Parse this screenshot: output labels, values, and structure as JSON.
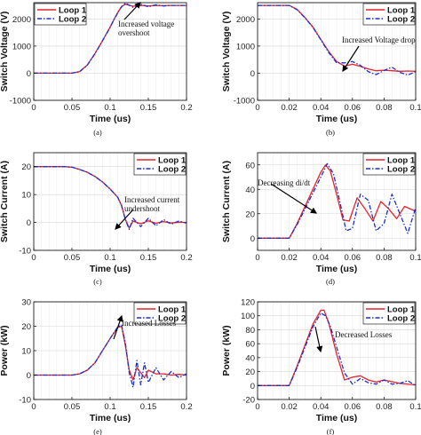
{
  "chart_data": [
    {
      "type": "line",
      "panel_label": "(a)",
      "xlabel": "Time (us)",
      "ylabel": "Switch Voltage (V)",
      "xlim": [
        0,
        0.2
      ],
      "ylim": [
        -1000,
        2600
      ],
      "xticks": [
        "0",
        "0.05",
        "0.1",
        "0.15",
        "0.2"
      ],
      "yticks": [
        "-1000",
        "0",
        "1000",
        "2000"
      ],
      "grid": true,
      "legend": "top-left",
      "annotation": [
        "Increased voltage",
        "overshoot"
      ],
      "series": [
        {
          "name": "Loop 1",
          "color": "#e8222a",
          "style": "solid",
          "x": [
            0,
            0.05,
            0.06,
            0.07,
            0.08,
            0.09,
            0.1,
            0.105,
            0.11,
            0.115,
            0.12,
            0.13,
            0.14,
            0.15,
            0.16,
            0.17,
            0.18,
            0.19,
            0.2
          ],
          "y": [
            0,
            0,
            60,
            300,
            720,
            1200,
            1700,
            1980,
            2240,
            2460,
            2540,
            2470,
            2500,
            2480,
            2500,
            2490,
            2500,
            2500,
            2500
          ]
        },
        {
          "name": "Loop 2",
          "color": "#1a2fd0",
          "style": "dashdot",
          "x": [
            0,
            0.05,
            0.06,
            0.07,
            0.08,
            0.09,
            0.1,
            0.105,
            0.11,
            0.115,
            0.12,
            0.13,
            0.14,
            0.15,
            0.16,
            0.17,
            0.18,
            0.19,
            0.2
          ],
          "y": [
            0,
            0,
            55,
            290,
            710,
            1190,
            1690,
            1970,
            2230,
            2450,
            2580,
            2430,
            2540,
            2450,
            2520,
            2480,
            2500,
            2500,
            2500
          ]
        }
      ]
    },
    {
      "type": "line",
      "panel_label": "(b)",
      "xlabel": "Time (us)",
      "ylabel": "Switch Voltage (V)",
      "xlim": [
        0,
        0.1
      ],
      "ylim": [
        -1000,
        2600
      ],
      "xticks": [
        "0",
        "0.02",
        "0.04",
        "0.06",
        "0.08",
        "0.1"
      ],
      "yticks": [
        "-1000",
        "0",
        "1000",
        "2000"
      ],
      "grid": true,
      "legend": "top-right",
      "annotation": [
        "Increased Voltage drop"
      ],
      "series": [
        {
          "name": "Loop 1",
          "color": "#e8222a",
          "style": "solid",
          "x": [
            0,
            0.02,
            0.025,
            0.03,
            0.035,
            0.04,
            0.045,
            0.05,
            0.055,
            0.06,
            0.065,
            0.07,
            0.075,
            0.08,
            0.085,
            0.09,
            0.095,
            0.1
          ],
          "y": [
            2500,
            2500,
            2350,
            2050,
            1700,
            1250,
            800,
            430,
            260,
            330,
            250,
            160,
            90,
            110,
            90,
            70,
            80,
            70
          ]
        },
        {
          "name": "Loop 2",
          "color": "#1a2fd0",
          "style": "dashdot",
          "x": [
            0,
            0.02,
            0.025,
            0.03,
            0.035,
            0.04,
            0.045,
            0.05,
            0.055,
            0.06,
            0.065,
            0.07,
            0.075,
            0.08,
            0.085,
            0.09,
            0.095,
            0.1
          ],
          "y": [
            2500,
            2500,
            2340,
            2040,
            1690,
            1230,
            760,
            380,
            380,
            430,
            290,
            60,
            -50,
            100,
            220,
            30,
            -70,
            60
          ]
        }
      ]
    },
    {
      "type": "line",
      "panel_label": "(c)",
      "xlabel": "Time (us)",
      "ylabel": "Switch Current (A)",
      "xlim": [
        0,
        0.2
      ],
      "ylim": [
        -10,
        25
      ],
      "xticks": [
        "0",
        "0.05",
        "0.1",
        "0.15",
        "0.2"
      ],
      "yticks": [
        "-10",
        "0",
        "10",
        "20"
      ],
      "grid": true,
      "legend": "top-right",
      "annotation": [
        "Increased current",
        "undershoot"
      ],
      "series": [
        {
          "name": "Loop 1",
          "color": "#e8222a",
          "style": "solid",
          "x": [
            0,
            0.02,
            0.04,
            0.05,
            0.06,
            0.07,
            0.08,
            0.09,
            0.1,
            0.11,
            0.115,
            0.12,
            0.125,
            0.13,
            0.14,
            0.15,
            0.16,
            0.17,
            0.18,
            0.19,
            0.2
          ],
          "y": [
            20,
            20,
            20,
            19.8,
            19,
            18,
            16.5,
            14.5,
            12,
            9,
            6,
            1,
            -2,
            0.5,
            -0.5,
            0.6,
            -0.3,
            0.3,
            -0.2,
            0.1,
            0
          ]
        },
        {
          "name": "Loop 2",
          "color": "#1a2fd0",
          "style": "dashdot",
          "x": [
            0,
            0.02,
            0.04,
            0.05,
            0.06,
            0.07,
            0.08,
            0.09,
            0.1,
            0.11,
            0.115,
            0.12,
            0.125,
            0.13,
            0.14,
            0.15,
            0.16,
            0.17,
            0.18,
            0.19,
            0.2
          ],
          "y": [
            20,
            20,
            20,
            19.8,
            19,
            18,
            16.5,
            14.5,
            12,
            9,
            6,
            1,
            -2.5,
            1.5,
            -1.5,
            1.5,
            -1.2,
            1,
            -0.6,
            0.5,
            -0.2
          ]
        }
      ]
    },
    {
      "type": "line",
      "panel_label": "(d)",
      "xlabel": "Time (us)",
      "ylabel": "Switch Current (A)",
      "xlim": [
        0,
        0.1
      ],
      "ylim": [
        -10,
        70
      ],
      "xticks": [
        "0",
        "0.02",
        "0.04",
        "0.06",
        "0.08",
        "0.1"
      ],
      "yticks": [
        "0",
        "20",
        "40",
        "60"
      ],
      "grid": true,
      "legend": "top-right",
      "annotation": [
        "Decreasing di/dt"
      ],
      "series": [
        {
          "name": "Loop 1",
          "color": "#e8222a",
          "style": "solid",
          "x": [
            0,
            0.02,
            0.025,
            0.03,
            0.035,
            0.04,
            0.043,
            0.046,
            0.05,
            0.054,
            0.058,
            0.063,
            0.068,
            0.073,
            0.078,
            0.083,
            0.088,
            0.093,
            0.1
          ],
          "y": [
            0,
            0,
            12,
            26,
            40,
            54,
            60,
            55,
            36,
            15,
            14,
            33,
            24,
            14,
            30,
            24,
            16,
            26,
            22
          ]
        },
        {
          "name": "Loop 2",
          "color": "#1a2fd0",
          "style": "dashdot",
          "x": [
            0,
            0.02,
            0.025,
            0.03,
            0.035,
            0.04,
            0.044,
            0.048,
            0.052,
            0.056,
            0.06,
            0.065,
            0.07,
            0.075,
            0.08,
            0.085,
            0.09,
            0.095,
            0.1
          ],
          "y": [
            0,
            0,
            11,
            24,
            37,
            50,
            61,
            53,
            30,
            6,
            8,
            36,
            31,
            6,
            12,
            36,
            20,
            4,
            25
          ]
        }
      ]
    },
    {
      "type": "line",
      "panel_label": "(e)",
      "xlabel": "Time (us)",
      "ylabel": "Power (kW)",
      "xlim": [
        0,
        0.2
      ],
      "ylim": [
        -10,
        30
      ],
      "xticks": [
        "0",
        "0.05",
        "0.1",
        "0.15",
        "0.2"
      ],
      "yticks": [
        "-10",
        "0",
        "10",
        "20",
        "30"
      ],
      "grid": true,
      "legend": "top-right",
      "annotation": [
        "Increased Losses"
      ],
      "series": [
        {
          "name": "Loop 1",
          "color": "#e8222a",
          "style": "solid",
          "x": [
            0,
            0.05,
            0.06,
            0.07,
            0.08,
            0.09,
            0.1,
            0.11,
            0.115,
            0.12,
            0.125,
            0.13,
            0.135,
            0.14,
            0.145,
            0.15,
            0.16,
            0.17,
            0.18,
            0.19,
            0.2
          ],
          "y": [
            0,
            0,
            0.5,
            2,
            5,
            10,
            15,
            19.5,
            20,
            12,
            2,
            -2,
            3,
            1,
            -1,
            2,
            0.5,
            0.5,
            0,
            0.3,
            0
          ]
        },
        {
          "name": "Loop 2",
          "color": "#1a2fd0",
          "style": "dashdot",
          "x": [
            0,
            0.05,
            0.06,
            0.07,
            0.08,
            0.09,
            0.1,
            0.11,
            0.115,
            0.12,
            0.125,
            0.13,
            0.135,
            0.14,
            0.145,
            0.15,
            0.16,
            0.17,
            0.18,
            0.19,
            0.2
          ],
          "y": [
            0,
            0,
            0.5,
            2,
            5,
            10,
            15,
            19.8,
            20.5,
            13,
            1,
            -5,
            6,
            -4,
            5,
            -3,
            3,
            -2,
            1.5,
            -1,
            0.5
          ]
        }
      ]
    },
    {
      "type": "line",
      "panel_label": "(f)",
      "xlabel": "Time (us)",
      "ylabel": "Power (kW)",
      "xlim": [
        0,
        0.1
      ],
      "ylim": [
        -20,
        120
      ],
      "xticks": [
        "0",
        "0.02",
        "0.04",
        "0.06",
        "0.08",
        "0.1"
      ],
      "yticks": [
        "-20",
        "0",
        "20",
        "40",
        "60",
        "80",
        "100",
        "120"
      ],
      "grid": true,
      "legend": "top-right",
      "annotation": [
        "Decreased Losses"
      ],
      "series": [
        {
          "name": "Loop 1",
          "color": "#e8222a",
          "style": "solid",
          "x": [
            0,
            0.02,
            0.025,
            0.03,
            0.035,
            0.04,
            0.042,
            0.045,
            0.05,
            0.055,
            0.06,
            0.065,
            0.07,
            0.075,
            0.08,
            0.09,
            0.1
          ],
          "y": [
            0,
            0,
            28,
            58,
            88,
            108,
            108,
            90,
            45,
            8,
            12,
            14,
            8,
            5,
            8,
            3,
            1
          ]
        },
        {
          "name": "Loop 2",
          "color": "#1a2fd0",
          "style": "dashdot",
          "x": [
            0,
            0.02,
            0.025,
            0.03,
            0.035,
            0.04,
            0.043,
            0.046,
            0.05,
            0.055,
            0.06,
            0.065,
            0.07,
            0.075,
            0.08,
            0.085,
            0.09,
            0.095,
            0.1
          ],
          "y": [
            0,
            0,
            26,
            55,
            84,
            104,
            100,
            85,
            55,
            18,
            2,
            10,
            4,
            2,
            8,
            2,
            3,
            7,
            0
          ]
        }
      ]
    }
  ]
}
